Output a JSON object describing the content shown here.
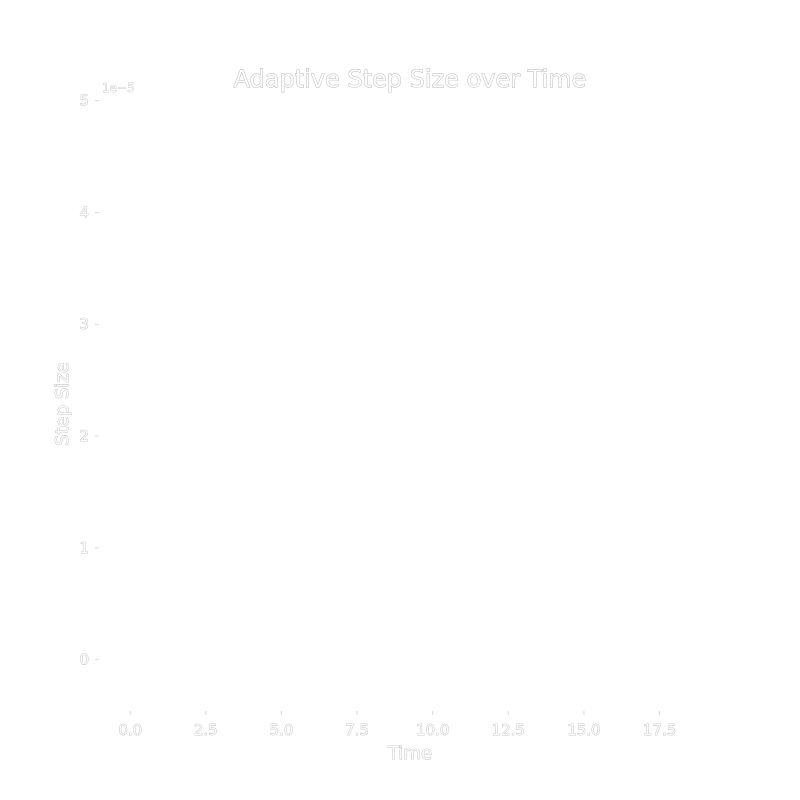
{
  "chart_data": {
    "type": "line",
    "title": "Adaptive Step Size over Time",
    "xlabel": "Time",
    "ylabel": "Step Size",
    "y_offset_label": "1e−5",
    "xlim": [
      -1.0,
      19.5
    ],
    "ylim": [
      -0.45,
      5.05
    ],
    "x_ticks": [
      0.0,
      2.5,
      5.0,
      7.5,
      10.0,
      12.5,
      15.0,
      17.5
    ],
    "x_tick_labels": [
      "0.0",
      "2.5",
      "5.0",
      "7.5",
      "10.0",
      "12.5",
      "15.0",
      "17.5"
    ],
    "y_ticks": [
      0,
      1,
      2,
      3,
      4,
      5
    ],
    "y_tick_labels": [
      "0",
      "1",
      "2",
      "3",
      "4",
      "5"
    ],
    "grid": false,
    "series": []
  }
}
